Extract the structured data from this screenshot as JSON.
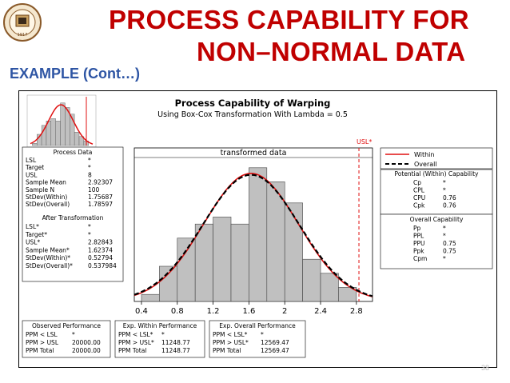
{
  "slide": {
    "title_line1": "PROCESS CAPABILITY FOR",
    "title_line2": "NON–NORMAL DATA",
    "subtitle": "EXAMPLE (Cont…)",
    "page_number": "38",
    "title_color": "#c00000",
    "subtitle_color": "#2e55a4"
  },
  "report": {
    "title": "Process Capability of Warping",
    "subtitle": "Using Box-Cox Transformation With Lambda = 0.5",
    "plot_label": "transformed data",
    "usl_marker": "USL*",
    "legend": {
      "within": "Within",
      "overall": "Overall"
    },
    "process_data": {
      "heading": "Process Data",
      "rows": [
        [
          "LSL",
          "*"
        ],
        [
          "Target",
          "*"
        ],
        [
          "USL",
          "8"
        ],
        [
          "Sample Mean",
          "2.92307"
        ],
        [
          "Sample N",
          "100"
        ],
        [
          "StDev(Within)",
          "1.75687"
        ],
        [
          "StDev(Overall)",
          "1.78597"
        ]
      ],
      "after_heading": "After Transformation",
      "after_rows": [
        [
          "LSL*",
          "*"
        ],
        [
          "Target*",
          "*"
        ],
        [
          "USL*",
          "2.82843"
        ],
        [
          "Sample Mean*",
          "1.62374"
        ],
        [
          "StDev(Within)*",
          "0.52794"
        ],
        [
          "StDev(Overall)*",
          "0.537984"
        ]
      ]
    },
    "potential": {
      "heading": "Potential (Within) Capability",
      "rows": [
        [
          "Cp",
          "*"
        ],
        [
          "CPL",
          "*"
        ],
        [
          "CPU",
          "0.76"
        ],
        [
          "Cpk",
          "0.76"
        ]
      ]
    },
    "overall": {
      "heading": "Overall Capability",
      "rows": [
        [
          "Pp",
          "*"
        ],
        [
          "PPL",
          "*"
        ],
        [
          "PPU",
          "0.75"
        ],
        [
          "Ppk",
          "0.75"
        ],
        [
          "Cpm",
          "*"
        ]
      ]
    },
    "observed": {
      "heading": "Observed Performance",
      "rows": [
        [
          "PPM < LSL",
          "*"
        ],
        [
          "PPM > USL",
          "20000.00"
        ],
        [
          "PPM Total",
          "20000.00"
        ]
      ]
    },
    "exp_within": {
      "heading": "Exp. Within Performance",
      "rows": [
        [
          "PPM < LSL*",
          "*"
        ],
        [
          "PPM > USL*",
          "11248.77"
        ],
        [
          "PPM Total",
          "11248.77"
        ]
      ]
    },
    "exp_overall": {
      "heading": "Exp. Overall Performance",
      "rows": [
        [
          "PPM < LSL*",
          "*"
        ],
        [
          "PPM > USL*",
          "12569.47"
        ],
        [
          "PPM Total",
          "12569.47"
        ]
      ]
    }
  },
  "chart_data": [
    {
      "type": "bar",
      "x_ticks": [
        0.4,
        0.8,
        1.2,
        1.6,
        2.0,
        2.4,
        2.8
      ],
      "xlim": [
        0.32,
        2.98
      ],
      "ylim": [
        0,
        1.0
      ],
      "bin_width": 0.2,
      "bins": [
        {
          "x0": 0.4,
          "x1": 0.6,
          "density": 0.05
        },
        {
          "x0": 0.6,
          "x1": 0.8,
          "density": 0.25
        },
        {
          "x0": 0.8,
          "x1": 1.0,
          "density": 0.45
        },
        {
          "x0": 1.0,
          "x1": 1.2,
          "density": 0.55
        },
        {
          "x0": 1.2,
          "x1": 1.4,
          "density": 0.6
        },
        {
          "x0": 1.4,
          "x1": 1.6,
          "density": 0.55
        },
        {
          "x0": 1.6,
          "x1": 1.8,
          "density": 0.95
        },
        {
          "x0": 1.8,
          "x1": 2.0,
          "density": 0.85
        },
        {
          "x0": 2.0,
          "x1": 2.2,
          "density": 0.7
        },
        {
          "x0": 2.2,
          "x1": 2.4,
          "density": 0.3
        },
        {
          "x0": 2.4,
          "x1": 2.6,
          "density": 0.2
        },
        {
          "x0": 2.6,
          "x1": 2.8,
          "density": 0.1
        },
        {
          "x0": 2.8,
          "x1": 3.0,
          "density": 0.0
        }
      ],
      "series": [
        {
          "name": "Within",
          "style": "solid",
          "color": "#e01010",
          "mean": 1.62374,
          "sd": 0.52794
        },
        {
          "name": "Overall",
          "style": "dashed",
          "color": "#000000",
          "mean": 1.62374,
          "sd": 0.537984
        }
      ],
      "reference_lines": [
        {
          "name": "USL*",
          "x": 2.82843,
          "color": "#e01010",
          "style": "dashed"
        }
      ],
      "bar_color": "#c0c0c0"
    }
  ]
}
